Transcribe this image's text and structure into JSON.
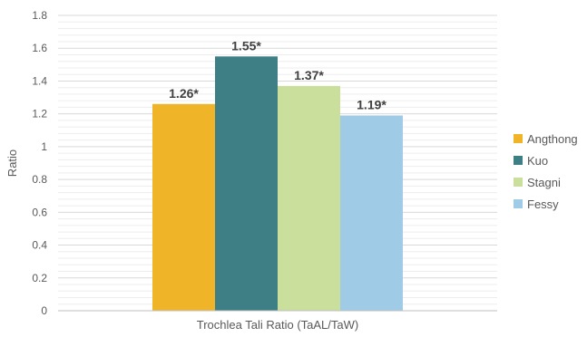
{
  "chart_data": {
    "type": "bar",
    "title": "",
    "xlabel": "Trochlea Tali Ratio (TaAL/TaW)",
    "ylabel": "Ratio",
    "ylim": [
      0,
      1.8
    ],
    "yticks": [
      "0",
      "0.2",
      "0.4",
      "0.6",
      "0.8",
      "1",
      "1.2",
      "1.4",
      "1.6",
      "1.8"
    ],
    "grid": true,
    "minor_grid": true,
    "legend_position": "right",
    "categories": [
      "Trochlea Tali Ratio (TaAL/TaW)"
    ],
    "series": [
      {
        "name": "Angthong",
        "values": [
          1.26
        ],
        "label": "1.26*",
        "color": "#F0B429"
      },
      {
        "name": "Kuo",
        "values": [
          1.55
        ],
        "label": "1.55*",
        "color": "#3E7F86"
      },
      {
        "name": "Stagni",
        "values": [
          1.37
        ],
        "label": "1.37*",
        "color": "#CADF9B"
      },
      {
        "name": "Fessy",
        "values": [
          1.19
        ],
        "label": "1.19*",
        "color": "#9FCBE6"
      }
    ]
  }
}
